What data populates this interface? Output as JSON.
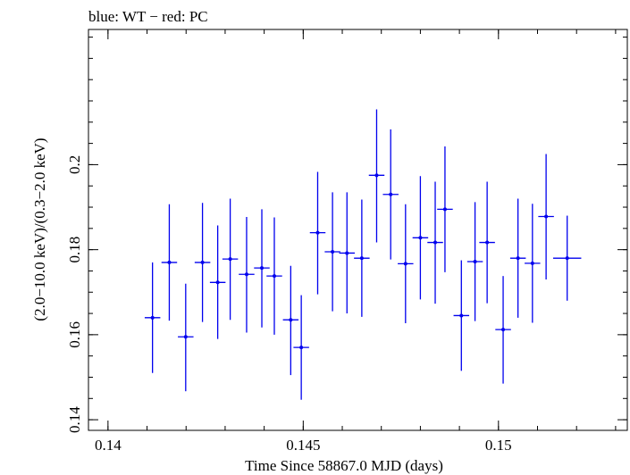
{
  "chart_data": {
    "type": "scatter",
    "title": "blue: WT − red: PC",
    "xlabel": "Time Since 58867.0 MJD (days)",
    "ylabel": "(2.0−10.0 keV)/(0.3−2.0 keV)",
    "xlim": [
      0.1395,
      0.1533
    ],
    "ylim": [
      0.1375,
      0.2318
    ],
    "xticks": [
      {
        "value": 0.14,
        "label": "0.14"
      },
      {
        "value": 0.145,
        "label": "0.145"
      },
      {
        "value": 0.15,
        "label": "0.15"
      }
    ],
    "yticks": [
      {
        "value": 0.14,
        "label": "0.14"
      },
      {
        "value": 0.16,
        "label": "0.16"
      },
      {
        "value": 0.18,
        "label": "0.18"
      },
      {
        "value": 0.2,
        "label": "0.2"
      }
    ],
    "grid": false,
    "series": [
      {
        "color": "#0000ee",
        "points": [
          {
            "x": 0.14114,
            "xerr": 0.0002,
            "y": 0.164,
            "ylo": 0.151,
            "yhi": 0.177
          },
          {
            "x": 0.14157,
            "xerr": 0.0002,
            "y": 0.177,
            "ylo": 0.1633,
            "yhi": 0.1907
          },
          {
            "x": 0.14199,
            "xerr": 0.0002,
            "y": 0.1595,
            "ylo": 0.1467,
            "yhi": 0.172
          },
          {
            "x": 0.14242,
            "xerr": 0.0002,
            "y": 0.177,
            "ylo": 0.163,
            "yhi": 0.191
          },
          {
            "x": 0.14281,
            "xerr": 0.0002,
            "y": 0.1723,
            "ylo": 0.159,
            "yhi": 0.1857
          },
          {
            "x": 0.14313,
            "xerr": 0.0002,
            "y": 0.1778,
            "ylo": 0.1635,
            "yhi": 0.192
          },
          {
            "x": 0.14355,
            "xerr": 0.0002,
            "y": 0.1742,
            "ylo": 0.1605,
            "yhi": 0.1877
          },
          {
            "x": 0.14394,
            "xerr": 0.0002,
            "y": 0.1757,
            "ylo": 0.1617,
            "yhi": 0.1895
          },
          {
            "x": 0.14426,
            "xerr": 0.0002,
            "y": 0.1738,
            "ylo": 0.16,
            "yhi": 0.1876
          },
          {
            "x": 0.14468,
            "xerr": 0.0002,
            "y": 0.1635,
            "ylo": 0.1505,
            "yhi": 0.1762
          },
          {
            "x": 0.14495,
            "xerr": 0.0002,
            "y": 0.157,
            "ylo": 0.1447,
            "yhi": 0.1693
          },
          {
            "x": 0.14537,
            "xerr": 0.0002,
            "y": 0.184,
            "ylo": 0.1695,
            "yhi": 0.1983
          },
          {
            "x": 0.14575,
            "xerr": 0.0002,
            "y": 0.1795,
            "ylo": 0.1655,
            "yhi": 0.1935
          },
          {
            "x": 0.14612,
            "xerr": 0.0002,
            "y": 0.1792,
            "ylo": 0.165,
            "yhi": 0.1935
          },
          {
            "x": 0.1465,
            "xerr": 0.0002,
            "y": 0.178,
            "ylo": 0.1642,
            "yhi": 0.1918
          },
          {
            "x": 0.14688,
            "xerr": 0.0002,
            "y": 0.1975,
            "ylo": 0.1817,
            "yhi": 0.213
          },
          {
            "x": 0.14724,
            "xerr": 0.0002,
            "y": 0.193,
            "ylo": 0.1777,
            "yhi": 0.2083
          },
          {
            "x": 0.14762,
            "xerr": 0.0002,
            "y": 0.1767,
            "ylo": 0.1627,
            "yhi": 0.1907
          },
          {
            "x": 0.148,
            "xerr": 0.0002,
            "y": 0.1828,
            "ylo": 0.1683,
            "yhi": 0.1973
          },
          {
            "x": 0.14838,
            "xerr": 0.0002,
            "y": 0.1817,
            "ylo": 0.1673,
            "yhi": 0.196
          },
          {
            "x": 0.14863,
            "xerr": 0.0002,
            "y": 0.1895,
            "ylo": 0.1747,
            "yhi": 0.2043
          },
          {
            "x": 0.14905,
            "xerr": 0.0002,
            "y": 0.1645,
            "ylo": 0.1515,
            "yhi": 0.1775
          },
          {
            "x": 0.1494,
            "xerr": 0.0002,
            "y": 0.1772,
            "ylo": 0.1632,
            "yhi": 0.1912
          },
          {
            "x": 0.14971,
            "xerr": 0.0002,
            "y": 0.1817,
            "ylo": 0.1674,
            "yhi": 0.196
          },
          {
            "x": 0.15012,
            "xerr": 0.0002,
            "y": 0.1612,
            "ylo": 0.1485,
            "yhi": 0.1738
          },
          {
            "x": 0.1505,
            "xerr": 0.0002,
            "y": 0.178,
            "ylo": 0.164,
            "yhi": 0.192
          },
          {
            "x": 0.15087,
            "xerr": 0.0002,
            "y": 0.1768,
            "ylo": 0.1628,
            "yhi": 0.1908
          },
          {
            "x": 0.15122,
            "xerr": 0.0002,
            "y": 0.1878,
            "ylo": 0.173,
            "yhi": 0.2025
          },
          {
            "x": 0.15176,
            "xerr": 0.00036,
            "y": 0.178,
            "ylo": 0.168,
            "yhi": 0.188
          }
        ]
      }
    ]
  }
}
